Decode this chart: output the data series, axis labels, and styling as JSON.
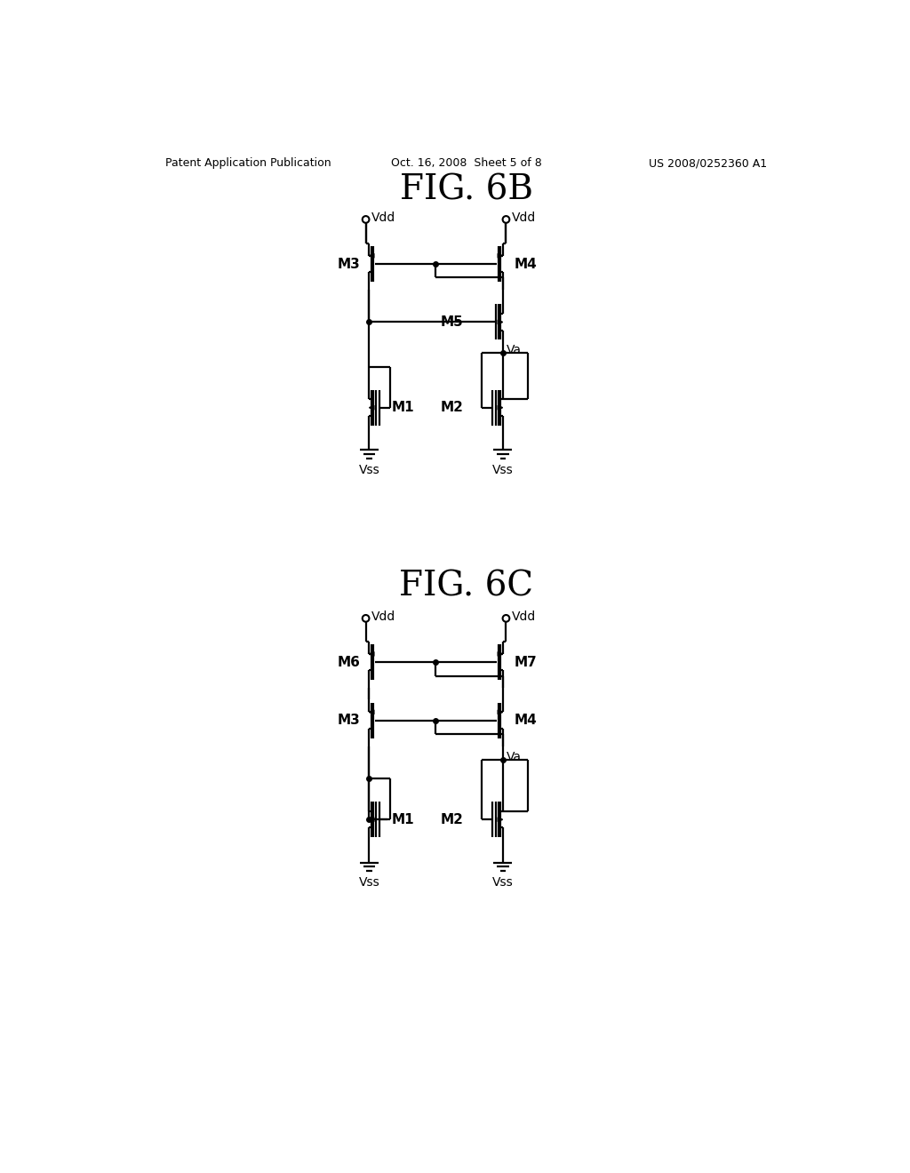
{
  "title_6b": "FIG. 6B",
  "title_6c": "FIG. 6C",
  "header_left": "Patent Application Publication",
  "header_mid": "Oct. 16, 2008  Sheet 5 of 8",
  "header_right": "US 2008/0252360 A1",
  "bg_color": "#ffffff",
  "lw": 1.6,
  "lw_thick": 3.0,
  "fig_width": 10.24,
  "fig_height": 13.2
}
